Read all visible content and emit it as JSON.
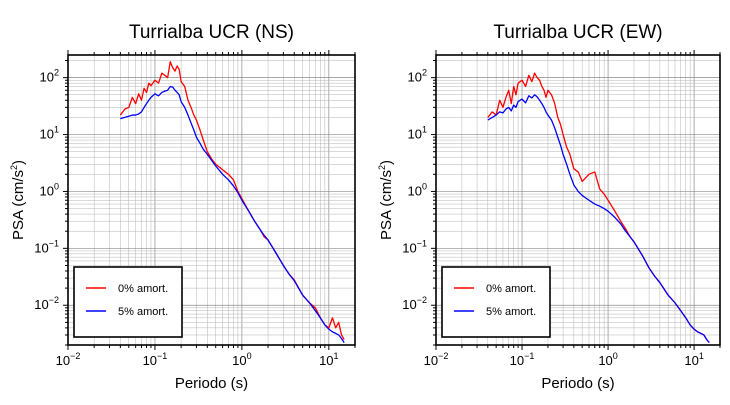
{
  "chart_data": [
    {
      "type": "line",
      "title": "Turrialba UCR (NS)",
      "xlabel": "Periodo (s)",
      "ylabel": "PSA (cm/s²)",
      "ylabel_text": "PSA (cm/s",
      "ylabel_sup": "2",
      "ylabel_close": ")",
      "xscale": "log",
      "yscale": "log",
      "xlim": [
        0.01,
        20
      ],
      "ylim": [
        0.002,
        250
      ],
      "grid": true,
      "legend_position": "bottom-left",
      "x_ticks": [
        {
          "base": "10",
          "exp": "−2",
          "value": 0.01
        },
        {
          "base": "10",
          "exp": "−1",
          "value": 0.1
        },
        {
          "base": "10",
          "exp": "0",
          "value": 1
        },
        {
          "base": "10",
          "exp": "1",
          "value": 10
        }
      ],
      "y_ticks": [
        {
          "base": "10",
          "exp": "−2",
          "value": 0.01
        },
        {
          "base": "10",
          "exp": "−1",
          "value": 0.1
        },
        {
          "base": "10",
          "exp": "0",
          "value": 1
        },
        {
          "base": "10",
          "exp": "1",
          "value": 10
        },
        {
          "base": "10",
          "exp": "2",
          "value": 100
        }
      ],
      "series": [
        {
          "name": "0% amort.",
          "color": "#ff0000",
          "x": [
            0.04,
            0.045,
            0.05,
            0.055,
            0.06,
            0.065,
            0.07,
            0.075,
            0.08,
            0.085,
            0.09,
            0.1,
            0.11,
            0.12,
            0.13,
            0.14,
            0.15,
            0.16,
            0.17,
            0.18,
            0.19,
            0.2,
            0.22,
            0.24,
            0.26,
            0.28,
            0.3,
            0.33,
            0.36,
            0.4,
            0.45,
            0.5,
            0.6,
            0.7,
            0.8,
            0.9,
            1.0,
            1.2,
            1.4,
            1.6,
            1.8,
            2.0,
            2.5,
            3.0,
            3.5,
            4.0,
            5.0,
            6.0,
            7.0,
            8.0,
            9.0,
            10.0,
            11.0,
            12.0,
            13.0,
            14.0,
            15.0
          ],
          "y": [
            22,
            28,
            30,
            45,
            35,
            52,
            40,
            65,
            55,
            80,
            72,
            90,
            80,
            120,
            110,
            100,
            190,
            150,
            130,
            160,
            140,
            85,
            70,
            40,
            30,
            22,
            18,
            12,
            8,
            5,
            3.7,
            3.0,
            2.4,
            2.0,
            1.6,
            1.0,
            0.75,
            0.45,
            0.3,
            0.22,
            0.16,
            0.14,
            0.08,
            0.05,
            0.035,
            0.028,
            0.015,
            0.011,
            0.009,
            0.006,
            0.0045,
            0.004,
            0.006,
            0.004,
            0.005,
            0.003,
            0.0025
          ]
        },
        {
          "name": "5% amort.",
          "color": "#0000ff",
          "x": [
            0.04,
            0.045,
            0.05,
            0.055,
            0.06,
            0.065,
            0.07,
            0.075,
            0.08,
            0.085,
            0.09,
            0.1,
            0.11,
            0.12,
            0.13,
            0.14,
            0.15,
            0.16,
            0.17,
            0.18,
            0.19,
            0.2,
            0.22,
            0.24,
            0.26,
            0.28,
            0.3,
            0.33,
            0.36,
            0.4,
            0.45,
            0.5,
            0.6,
            0.7,
            0.8,
            0.9,
            1.0,
            1.2,
            1.4,
            1.6,
            1.8,
            2.0,
            2.5,
            3.0,
            3.5,
            4.0,
            5.0,
            6.0,
            7.0,
            8.0,
            9.0,
            10.0,
            11.0,
            12.0,
            13.0,
            14.0,
            15.0
          ],
          "y": [
            19,
            20,
            21,
            22,
            22,
            23,
            25,
            30,
            35,
            40,
            45,
            52,
            48,
            55,
            58,
            60,
            70,
            68,
            60,
            55,
            50,
            38,
            30,
            22,
            16,
            12,
            9,
            7,
            5.5,
            4.5,
            3.5,
            2.8,
            2.0,
            1.6,
            1.25,
            0.95,
            0.7,
            0.45,
            0.3,
            0.22,
            0.17,
            0.14,
            0.08,
            0.05,
            0.035,
            0.027,
            0.015,
            0.011,
            0.008,
            0.006,
            0.0045,
            0.0038,
            0.0034,
            0.0032,
            0.003,
            0.0026,
            0.0022
          ]
        }
      ]
    },
    {
      "type": "line",
      "title": "Turrialba UCR (EW)",
      "xlabel": "Periodo (s)",
      "ylabel": "PSA (cm/s²)",
      "ylabel_text": "PSA (cm/s",
      "ylabel_sup": "2",
      "ylabel_close": ")",
      "xscale": "log",
      "yscale": "log",
      "xlim": [
        0.01,
        20
      ],
      "ylim": [
        0.002,
        250
      ],
      "grid": true,
      "legend_position": "bottom-left",
      "x_ticks": [
        {
          "base": "10",
          "exp": "−2",
          "value": 0.01
        },
        {
          "base": "10",
          "exp": "−1",
          "value": 0.1
        },
        {
          "base": "10",
          "exp": "0",
          "value": 1
        },
        {
          "base": "10",
          "exp": "1",
          "value": 10
        }
      ],
      "y_ticks": [
        {
          "base": "10",
          "exp": "−2",
          "value": 0.01
        },
        {
          "base": "10",
          "exp": "−1",
          "value": 0.1
        },
        {
          "base": "10",
          "exp": "0",
          "value": 1
        },
        {
          "base": "10",
          "exp": "1",
          "value": 10
        },
        {
          "base": "10",
          "exp": "2",
          "value": 100
        }
      ],
      "series": [
        {
          "name": "0% amort.",
          "color": "#ff0000",
          "x": [
            0.04,
            0.045,
            0.05,
            0.055,
            0.06,
            0.065,
            0.07,
            0.075,
            0.08,
            0.085,
            0.09,
            0.1,
            0.11,
            0.12,
            0.13,
            0.14,
            0.15,
            0.16,
            0.17,
            0.18,
            0.19,
            0.2,
            0.22,
            0.24,
            0.26,
            0.28,
            0.3,
            0.33,
            0.36,
            0.4,
            0.45,
            0.5,
            0.6,
            0.7,
            0.8,
            0.9,
            1.0,
            1.2,
            1.4,
            1.6,
            1.8,
            2.0,
            2.5,
            3.0,
            3.5,
            4.0,
            5.0,
            6.0,
            7.0,
            8.0,
            9.0,
            10.0,
            11.0,
            12.0,
            13.0,
            14.0,
            15.0
          ],
          "y": [
            20,
            25,
            22,
            40,
            30,
            45,
            60,
            35,
            70,
            50,
            80,
            90,
            70,
            110,
            85,
            120,
            100,
            90,
            70,
            60,
            45,
            60,
            50,
            35,
            20,
            15,
            10,
            6,
            4.5,
            2.5,
            2.2,
            1.5,
            2.0,
            2.2,
            1.1,
            0.9,
            0.7,
            0.45,
            0.3,
            0.22,
            0.16,
            0.13,
            0.075,
            0.045,
            0.032,
            0.025,
            0.015,
            0.011,
            0.008,
            0.006,
            0.0045,
            0.0038,
            0.0034,
            0.0032,
            0.003,
            0.0025,
            0.0022
          ]
        },
        {
          "name": "5% amort.",
          "color": "#0000ff",
          "x": [
            0.04,
            0.045,
            0.05,
            0.055,
            0.06,
            0.065,
            0.07,
            0.075,
            0.08,
            0.085,
            0.09,
            0.1,
            0.11,
            0.12,
            0.13,
            0.14,
            0.15,
            0.16,
            0.17,
            0.18,
            0.19,
            0.2,
            0.22,
            0.24,
            0.26,
            0.28,
            0.3,
            0.33,
            0.36,
            0.4,
            0.45,
            0.5,
            0.6,
            0.7,
            0.8,
            0.9,
            1.0,
            1.2,
            1.4,
            1.6,
            1.8,
            2.0,
            2.5,
            3.0,
            3.5,
            4.0,
            5.0,
            6.0,
            7.0,
            8.0,
            9.0,
            10.0,
            11.0,
            12.0,
            13.0,
            14.0,
            15.0
          ],
          "y": [
            18,
            20,
            22,
            25,
            24,
            28,
            30,
            26,
            33,
            30,
            38,
            42,
            36,
            48,
            44,
            50,
            46,
            40,
            35,
            30,
            25,
            22,
            18,
            13,
            9,
            6.5,
            4.5,
            3.0,
            2.0,
            1.3,
            1.0,
            0.85,
            0.7,
            0.6,
            0.55,
            0.5,
            0.45,
            0.35,
            0.27,
            0.2,
            0.16,
            0.13,
            0.075,
            0.045,
            0.032,
            0.025,
            0.015,
            0.011,
            0.008,
            0.006,
            0.0045,
            0.0038,
            0.0034,
            0.0032,
            0.003,
            0.0025,
            0.0022
          ]
        }
      ]
    }
  ]
}
